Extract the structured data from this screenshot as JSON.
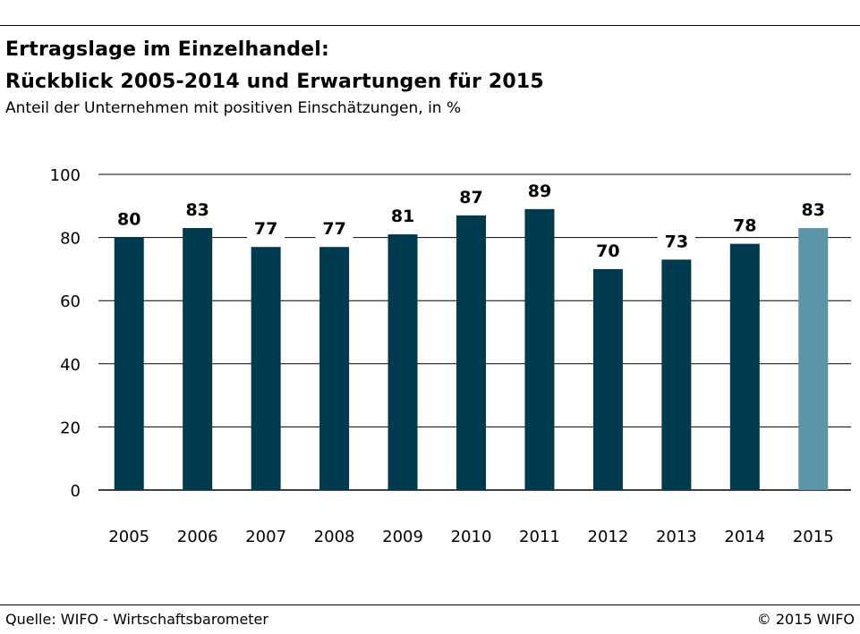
{
  "header": {
    "title_line1": "Ertragslage im Einzelhandel:",
    "title_line2": "Rückblick 2005-2014 und Erwartungen für 2015",
    "subtitle": "Anteil der Unternehmen mit positiven Einschätzungen, in %"
  },
  "footer": {
    "source": "Quelle: WIFO - Wirtschaftsbarometer",
    "copyright": "© 2015 WIFO"
  },
  "colors": {
    "bar": "#003a4f",
    "bar_forecast": "#5b95aa",
    "grid": "#000000"
  },
  "chart_data": {
    "type": "bar",
    "title": "Ertragslage im Einzelhandel: Rückblick 2005-2014 und Erwartungen für 2015",
    "subtitle": "Anteil der Unternehmen mit positiven Einschätzungen, in %",
    "xlabel": "",
    "ylabel": "",
    "ylim": [
      0,
      100
    ],
    "yticks": [
      0,
      20,
      40,
      60,
      80,
      100
    ],
    "grid": true,
    "categories": [
      "2005",
      "2006",
      "2007",
      "2008",
      "2009",
      "2010",
      "2011",
      "2012",
      "2013",
      "2014",
      "2015"
    ],
    "values": [
      80,
      83,
      77,
      77,
      81,
      87,
      89,
      70,
      73,
      78,
      83
    ],
    "forecast_categories": [
      "2015"
    ]
  }
}
